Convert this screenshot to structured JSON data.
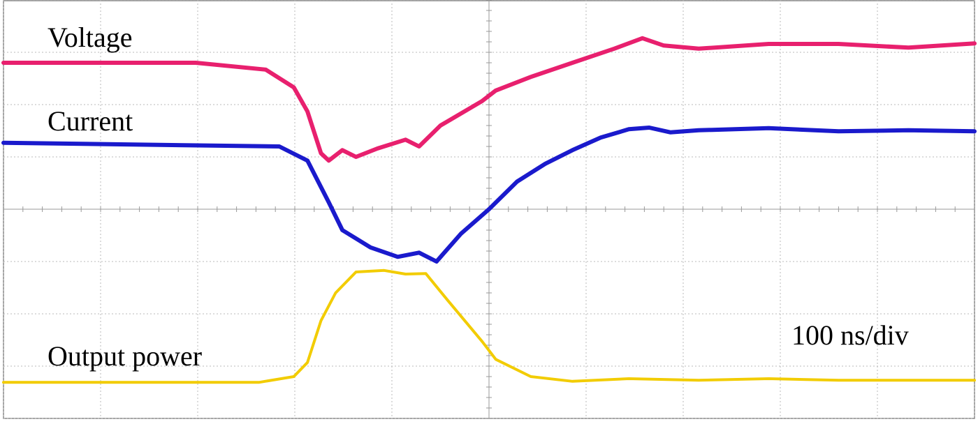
{
  "chart_data": {
    "type": "line",
    "x_label": "100 ns/div",
    "xlim": [
      0,
      10
    ],
    "ylim": [
      0,
      8
    ],
    "xticks": [
      0,
      1,
      2,
      3,
      4,
      5,
      6,
      7,
      8,
      9,
      10
    ],
    "yticks": [
      0,
      1,
      2,
      3,
      4,
      5,
      6,
      7,
      8
    ],
    "grid": true,
    "series": [
      {
        "name": "Voltage",
        "color": "#e8206e",
        "x": [
          0,
          1.98,
          2.7,
          2.99,
          3.13,
          3.27,
          3.35,
          3.49,
          3.63,
          3.85,
          4.14,
          4.28,
          4.5,
          4.93,
          5.07,
          5.43,
          5.86,
          6.29,
          6.58,
          6.8,
          7.16,
          7.88,
          8.6,
          9.32,
          10
        ],
        "values": [
          6.8,
          6.8,
          6.67,
          6.33,
          5.87,
          5.07,
          4.93,
          5.13,
          5.0,
          5.16,
          5.33,
          5.2,
          5.6,
          6.07,
          6.27,
          6.53,
          6.8,
          7.07,
          7.27,
          7.13,
          7.07,
          7.16,
          7.16,
          7.09,
          7.17
        ]
      },
      {
        "name": "Current",
        "color": "#1a1acc",
        "x": [
          0,
          2.84,
          3.13,
          3.35,
          3.49,
          3.78,
          4.06,
          4.28,
          4.46,
          4.71,
          5.0,
          5.29,
          5.58,
          5.86,
          6.15,
          6.44,
          6.65,
          6.87,
          7.16,
          7.88,
          8.6,
          9.32,
          10
        ],
        "values": [
          5.27,
          5.2,
          4.93,
          4.13,
          3.6,
          3.27,
          3.09,
          3.17,
          3.0,
          3.53,
          4.0,
          4.53,
          4.87,
          5.13,
          5.37,
          5.53,
          5.56,
          5.47,
          5.51,
          5.55,
          5.49,
          5.51,
          5.49
        ]
      },
      {
        "name": "Output power",
        "color": "#f2cc00",
        "x": [
          0,
          2.63,
          2.99,
          3.13,
          3.27,
          3.42,
          3.63,
          3.92,
          4.14,
          4.35,
          4.57,
          4.93,
          5.07,
          5.43,
          5.86,
          6.44,
          7.16,
          7.88,
          8.6,
          10
        ],
        "values": [
          0.69,
          0.69,
          0.8,
          1.07,
          1.87,
          2.4,
          2.8,
          2.83,
          2.76,
          2.77,
          2.27,
          1.47,
          1.13,
          0.8,
          0.71,
          0.76,
          0.73,
          0.76,
          0.73,
          0.73
        ]
      }
    ]
  }
}
